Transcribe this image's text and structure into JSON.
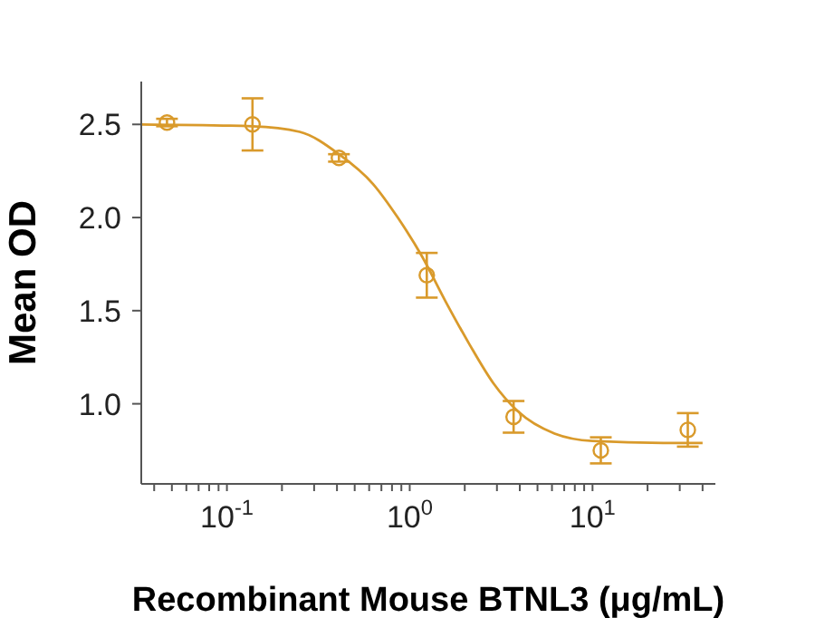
{
  "chart_data": {
    "type": "scatter",
    "xlabel": "Recombinant Mouse BTNL3 (μg/mL)",
    "ylabel": "Mean OD",
    "log": "x",
    "xlim": [
      0.034,
      47
    ],
    "ylim": [
      0.57,
      2.73
    ],
    "xticks": [
      {
        "value": 0.04,
        "label": null
      },
      {
        "value": 0.05,
        "label": null
      },
      {
        "value": 0.06,
        "label": null
      },
      {
        "value": 0.07,
        "label": null
      },
      {
        "value": 0.08,
        "label": null
      },
      {
        "value": 0.09,
        "label": null
      },
      {
        "value": 0.1,
        "label": "10$^{-1}$"
      },
      {
        "value": 0.2,
        "label": null
      },
      {
        "value": 0.3,
        "label": null
      },
      {
        "value": 0.4,
        "label": null
      },
      {
        "value": 0.5,
        "label": null
      },
      {
        "value": 0.6,
        "label": null
      },
      {
        "value": 0.7,
        "label": null
      },
      {
        "value": 0.8,
        "label": null
      },
      {
        "value": 0.9,
        "label": null
      },
      {
        "value": 1,
        "label": "10$^{0}$"
      },
      {
        "value": 2,
        "label": null
      },
      {
        "value": 3,
        "label": null
      },
      {
        "value": 4,
        "label": null
      },
      {
        "value": 5,
        "label": null
      },
      {
        "value": 6,
        "label": null
      },
      {
        "value": 7,
        "label": null
      },
      {
        "value": 8,
        "label": null
      },
      {
        "value": 9,
        "label": null
      },
      {
        "value": 10,
        "label": "10$^{1}$"
      },
      {
        "value": 20,
        "label": null
      },
      {
        "value": 30,
        "label": null
      },
      {
        "value": 40,
        "label": null
      }
    ],
    "yticks": [
      {
        "value": 1,
        "label": "1.0"
      },
      {
        "value": 1.5,
        "label": "1.5"
      },
      {
        "value": 2,
        "label": "2.0"
      },
      {
        "value": 2.5,
        "label": "2.5"
      }
    ],
    "grid": false,
    "legend": false,
    "marker": "circle",
    "series": [
      {
        "color": "#d99a2b",
        "x": [
          0.047,
          0.138,
          0.41,
          1.24,
          3.7,
          11.1,
          33.2
        ],
        "values": [
          2.51,
          2.5,
          2.32,
          1.69,
          0.93,
          0.75,
          0.86
        ],
        "errors": [
          0.02,
          0.14,
          0.02,
          0.12,
          0.085,
          0.07,
          0.09
        ]
      },
      {
        "type": "line",
        "color": "#d99a2b",
        "marker": "none",
        "line_style": "solid",
        "x": [
          0.034,
          0.138,
          0.25,
          0.41,
          0.63,
          0.86,
          1.17,
          1.57,
          2.12,
          2.87,
          3.9,
          6.2,
          10,
          24.4,
          40
        ],
        "values": [
          2.5,
          2.49,
          2.46,
          2.34,
          2.18,
          2.0,
          1.79,
          1.55,
          1.32,
          1.11,
          0.96,
          0.84,
          0.8,
          0.79,
          0.79
        ]
      }
    ]
  }
}
